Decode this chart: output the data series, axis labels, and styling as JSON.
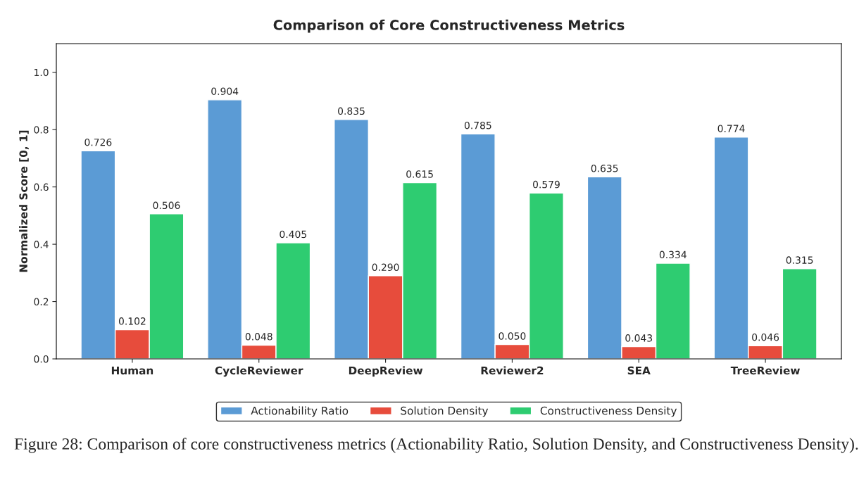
{
  "chart_data": {
    "type": "bar",
    "title": "Comparison of Core Constructiveness Metrics",
    "ylabel": "Normalized Score [0, 1]",
    "categories": [
      "Human",
      "CycleReviewer",
      "DeepReview",
      "Reviewer2",
      "SEA",
      "TreeReview"
    ],
    "series": [
      {
        "name": "Actionability Ratio",
        "color": "#5b9bd5",
        "values": [
          0.726,
          0.904,
          0.835,
          0.785,
          0.635,
          0.774
        ],
        "value_labels": [
          "0.726",
          "0.904",
          "0.835",
          "0.785",
          "0.635",
          "0.774"
        ]
      },
      {
        "name": "Solution Density",
        "color": "#e74c3c",
        "values": [
          0.102,
          0.048,
          0.29,
          0.05,
          0.043,
          0.046
        ],
        "value_labels": [
          "0.102",
          "0.048",
          "0.290",
          "0.050",
          "0.043",
          "0.046"
        ]
      },
      {
        "name": "Constructiveness Density",
        "color": "#2ecc71",
        "values": [
          0.506,
          0.405,
          0.615,
          0.579,
          0.334,
          0.315
        ],
        "value_labels": [
          "0.506",
          "0.405",
          "0.615",
          "0.579",
          "0.334",
          "0.315"
        ]
      }
    ],
    "ylim": [
      0,
      1.1
    ],
    "yticks": [
      {
        "value": 0,
        "label": "0.0"
      },
      {
        "value": 0.2,
        "label": "0.2"
      },
      {
        "value": 0.4,
        "label": "0.4"
      },
      {
        "value": 0.6,
        "label": "0.6"
      },
      {
        "value": 0.8,
        "label": "0.8"
      },
      {
        "value": 1.0,
        "label": "1.0"
      }
    ],
    "grid": false,
    "legend": "bottom",
    "annotations": [
      "Figure 28: Comparison of core constructiveness metrics (Actionability Ratio, Solution Density, and Constructiveness Density)."
    ]
  }
}
